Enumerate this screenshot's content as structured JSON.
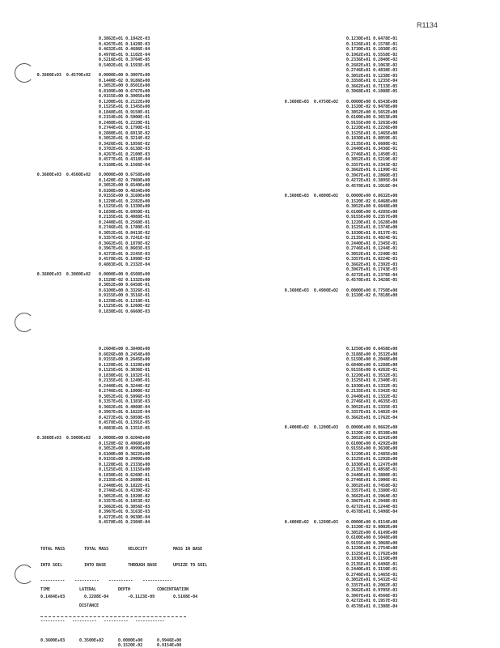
{
  "ref_code": "R1134",
  "blocks": [
    {
      "id": "left-top",
      "groups": [
        {
          "label": "",
          "rows": [
            "0.3862E+01 0.1842E-03",
            "0.4267E+01 0.1428E-03",
            "0.4632E+01 0.4686E-04",
            "0.4978E+01 0.1102E-04",
            "0.5216E+01 0.3764E-05",
            "0.5402E+01 0.1593E-05"
          ]
        },
        {
          "label": "0.3600E+03  0.4570E+02",
          "rows": [
            "0.0000E+00 0.3007E+00",
            "0.1440E-02 0.9186E+00",
            "0.3052E+00 0.8501E+00",
            "0.8109E+00 0.6767E+00",
            "0.9155E+00 0.3905E+00",
            "0.1200E+01 0.2122E+00",
            "0.1525E+01 0.1345E+00",
            "0.1848E+01 0.9150E-01",
            "0.2154E+01 0.5000E-01",
            "0.2488E+01 0.2220E-01",
            "0.2744E+01 0.1790E-01",
            "0.2880E+01 0.6913E-02",
            "0.3052E+01 0.3214E-02",
            "0.3426E+01 0.1856E-02",
            "0.3702E+01 0.6138E-03",
            "0.4267E+01 0.2100E-03",
            "0.4577E+01 0.4318E-04",
            "0.5160E+01 0.1566E-04"
          ]
        },
        {
          "label": "0.3600E+03  0.4500E+02",
          "rows": [
            "0.0000E+00 0.6758E+00",
            "0.1420E-02 0.7060E+00",
            "0.3052E+00 0.6540E+00",
            "0.6100E+00 0.4834E+00",
            "0.9155E+00 0.3160E+00",
            "0.1220E+01 0.2282E+00",
            "0.1525E+01 0.1339E+00",
            "0.1830E+01 0.6950E-01",
            "0.2135E+01 0.4088E-01",
            "0.2440E+01 0.2560E-01",
            "0.2746E+01 0.1780E-01",
            "0.3052E+01 0.8413E-02",
            "0.3357E+01 0.7241E-02",
            "0.3662E+01 0.1878E-02",
            "0.3967E+01 0.8603E-03",
            "0.4272E+01 0.2245E-03",
            "0.4578E+01 0.1998E-03",
            "0.4883E+01 0.2332E-04"
          ]
        },
        {
          "label": "0.3600E+03  0.3000E+02",
          "rows": [
            "0.0000E+00 0.6508E+00",
            "0.1520E-02 0.1332E+00",
            "0.3052E+00 0.6458E-01",
            "0.6100E+00 0.3326E-01",
            "0.9155E+00 0.3516E-01",
            "0.1220E+01 0.1210E-01",
            "0.1525E+01 0.1260E-02",
            "0.1830E+01 0.6660E-03"
          ]
        }
      ]
    },
    {
      "id": "right-top",
      "groups": [
        {
          "label": "",
          "rows": [
            "0.1230E+01 0.6478E-01",
            "0.1526E+01 0.1578E-01",
            "0.1730E+01 0.1030E-01",
            "0.1962E+01 0.5558E-02",
            "0.2336E+01 0.2840E-02",
            "0.2682E+01 0.1063E-02",
            "0.2746E+01 0.4838E-03",
            "0.3052E+01 0.1238E-03",
            "0.3358E+01 0.1235E-04",
            "0.3662E+01 0.7133E-05",
            "0.3968E+01 0.1808E-05"
          ]
        },
        {
          "label": "0.3600E+03  0.4750E+02",
          "rows": [
            "0.0000E+00 0.6543E+00",
            "0.1520E-02 0.9478E+00",
            "0.3052E+00 0.5652E+00",
            "0.6100E+00 0.3653E+00",
            "0.9155E+00 0.3263E+00",
            "0.1220E+01 0.2226E+00",
            "0.1525E+01 0.1465E+00",
            "0.1830E+01 0.8059E-01",
            "0.2135E+01 0.6608E-01",
            "0.2440E+01 0.3436E-01",
            "0.2746E+01 0.1450E-01",
            "0.3052E+01 0.5219E-02",
            "0.3357E+01 0.2343E-02",
            "0.3662E+01 0.1199E-02",
            "0.3967E+01 0.2860E-03",
            "0.4272E+01 0.3895E-04",
            "0.4578E+01 0.1016E-04"
          ]
        },
        {
          "label": "0.3600E+03  0.4800E+02",
          "rows": [
            "0.0000E+00 0.8632E+00",
            "0.1520E-02 0.6468E+00",
            "0.3052E+00 0.6648E+00",
            "0.6100E+00 0.4285E+00",
            "0.9155E+00 0.2357E+00",
            "0.1220E+01 0.1628E+00",
            "0.1525E+01 0.1374E+00",
            "0.1830E+01 0.8137E-01",
            "0.2135E+01 0.4824E-01",
            "0.2440E+01 0.2345E-01",
            "0.2746E+01 0.1244E-01",
            "0.3052E+01 0.2240E-02",
            "0.3357E+01 0.8224E-03",
            "0.3662E+01 0.2392E-03",
            "0.3967E+01 0.1743E-03",
            "0.4272E+01 0.1376E-04",
            "0.4578E+01 0.3428E-05"
          ]
        },
        {
          "label": "0.3600E+03  0.4900E+02",
          "rows": [
            "0.0000E+00 0.7750E+00",
            "0.1520E-02 0.7818E+00"
          ]
        }
      ]
    },
    {
      "id": "left-bottom",
      "groups": [
        {
          "label": "",
          "rows": [
            "0.2604E+00 0.3840E+00",
            "0.6026E+00 0.2454E+00",
            "0.9155E+00 0.2645E+00",
            "0.1220E+01 0.1328E+00",
            "0.1525E+01 0.3036E-01",
            "0.1830E+01 0.1832E-01",
            "0.2135E+01 0.1240E-01",
            "0.2440E+01 0.3244E-02",
            "0.2746E+01 0.1000E-02",
            "0.3052E+01 0.5096E-03",
            "0.3357E+01 0.1383E-03",
            "0.3662E+01 0.4060E-04",
            "0.3967E+01 0.1622E-04",
            "0.4272E+01 0.5050E-05",
            "0.4578E+01 0.1391E-05",
            "0.4883E+01 0.1351E-05"
          ]
        },
        {
          "label": "0.3600E+03  0.5000E+02",
          "rows": [
            "0.0000E+00 0.6204E+00",
            "0.1520E-02 0.4968E+00",
            "0.3052E+00 0.4999E+00",
            "0.6100E+00 0.3622E+00",
            "0.9155E+00 0.2909E+00",
            "0.1220E+01 0.2333E+00",
            "0.1525E+01 0.1315E+00",
            "0.1830E+01 0.6260E-01",
            "0.2135E+01 0.2680E-01",
            "0.2440E+01 0.1822E-01",
            "0.2746E+01 0.4339E-02",
            "0.3052E+01 0.1920E-02",
            "0.3357E+01 0.1053E-02",
            "0.3662E+01 0.3056E-03",
            "0.3967E+01 0.3163E-03",
            "0.4272E+01 0.9630E-04",
            "0.4578E+01 0.2304E-04"
          ]
        }
      ]
    },
    {
      "id": "right-bottom",
      "groups": [
        {
          "label": "",
          "rows": [
            "0.1250E+00 0.6458E+00",
            "0.3188E+00 0.3532E+00",
            "0.5150E+00 0.2048E+00",
            "0.6840E+00 0.1288E+00",
            "0.9155E+00 0.4262E-01",
            "0.1220E+01 0.3532E-01",
            "0.1525E+01 0.2340E-01",
            "0.1830E+01 0.1332E-01",
            "0.2135E+01 0.5342E-02",
            "0.2440E+01 0.1332E-02",
            "0.2746E+01 0.4635E-03",
            "0.3052E+01 0.1335E-03",
            "0.3357E+01 0.5482E-04",
            "0.3662E+01 0.1762E-04"
          ]
        },
        {
          "label": "0.4000E+02  0.1200E+03",
          "rows": [
            "0.0000E+00 0.8662E+00",
            "0.1520E-02 0.8538E+00",
            "0.3052E+00 0.6242E+00",
            "0.6100E+00 0.4292E+00",
            "0.9155E+00 0.3630E+00",
            "0.1220E+01 0.2485E+00",
            "0.1525E+01 0.1292E+00",
            "0.1830E+01 0.1247E+00",
            "0.2135E+01 0.4858E-01",
            "0.2440E+01 0.3880E-01",
            "0.2746E+01 0.1906E-01",
            "0.3052E+01 0.7458E-02",
            "0.3357E+01 0.3380E-02",
            "0.3662E+01 0.1964E-02",
            "0.3967E+01 0.2948E-03",
            "0.4272E+01 0.1244E-03",
            "0.4578E+01 0.5498E-04"
          ]
        },
        {
          "label": "0.4000E+02  0.1280E+03",
          "rows": [
            "0.0000E+00 0.8154E+00",
            "0.1520E-02 0.9002E+00",
            "0.3052E+00 0.6149E+00",
            "0.6100E+00 0.5048E+00",
            "0.9155E+00 0.3068E+00",
            "0.1220E+01 0.2754E+00",
            "0.1525E+01 0.1762E+00",
            "0.1830E+01 0.1150E+00",
            "0.2135E+01 0.6496E-01",
            "0.2440E+01 0.3150E-01",
            "0.2746E+01 0.1465E-01",
            "0.3052E+01 0.5432E-02",
            "0.3357E+01 0.2082E-02",
            "0.3662E+01 0.9705E-03",
            "0.3967E+01 0.4566E-03",
            "0.4272E+01 0.1957E-03",
            "0.4578E+01 0.1308E-04"
          ]
        }
      ]
    }
  ],
  "summary": {
    "headers": [
      "TOTAL MASS",
      "TOTAL MASS",
      "VELOCITY",
      "MASS IN BASE"
    ],
    "subheaders": [
      "INTO SOIL",
      "INTO BASE",
      "THROUGH BASE",
      "UPSIZE TO SOIL"
    ],
    "values": [
      "0.1484E+03",
      "0.2288E-04",
      "-0.1123E-09",
      "0.5108E-04"
    ]
  },
  "profile": {
    "headers": [
      "TIME",
      "LATERAL",
      "DEPTH",
      "CONCENTRATION"
    ],
    "subheaders": [
      "",
      "DISTANCE",
      "",
      ""
    ],
    "rows": [
      [
        "0.3600E+03",
        "0.3500E+02",
        "0.0000E+00",
        "0.9946E+00"
      ],
      [
        "",
        "",
        "0.1520E-02",
        "0.9154E+00"
      ],
      [
        "",
        "",
        "0.3052E+00",
        "0.7984E+00"
      ],
      [
        "",
        "",
        "0.6104E+00",
        "0.5790E+00"
      ]
    ]
  }
}
